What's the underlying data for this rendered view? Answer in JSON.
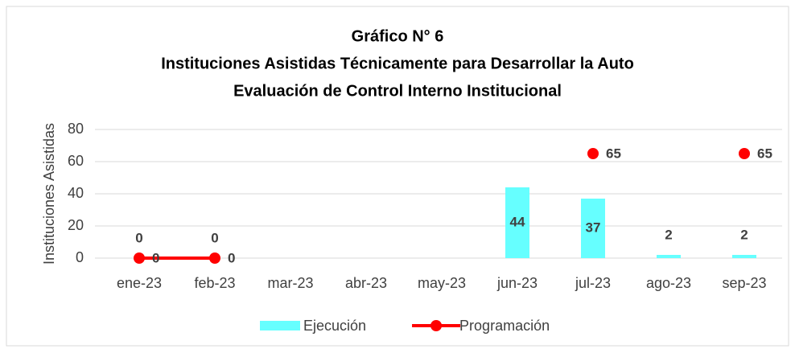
{
  "chart_data": {
    "type": "bar_line",
    "title": "Gráfico N° 6",
    "subtitle": [
      "Instituciones Asistidas Técnicamente para Desarrollar la Auto",
      "Evaluación de Control Interno Institucional"
    ],
    "y_label": "Instituciones Asistidas",
    "categories": [
      "ene-23",
      "feb-23",
      "mar-23",
      "abr-23",
      "may-23",
      "jun-23",
      "jul-23",
      "ago-23",
      "sep-23"
    ],
    "series": [
      {
        "name": "Ejecución",
        "type": "bar",
        "color": "#66ffff",
        "values": [
          0,
          0,
          null,
          null,
          null,
          44,
          37,
          2,
          2
        ]
      },
      {
        "name": "Programación",
        "type": "line",
        "color": "#ff0000",
        "values": [
          0,
          0,
          null,
          null,
          null,
          null,
          65,
          null,
          65
        ]
      }
    ],
    "ylim": [
      0,
      80
    ],
    "yticks": [
      0,
      20,
      40,
      60,
      80
    ],
    "grid": true,
    "legend": "bottom"
  }
}
